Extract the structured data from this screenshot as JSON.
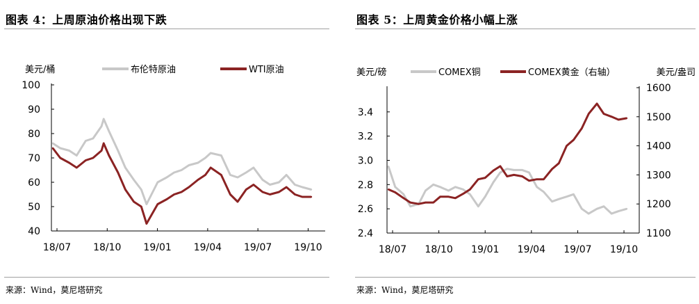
{
  "left": {
    "title": "图表 4：上周原油价格出现下跌",
    "source": "来源：Wind，莫尼塔研究",
    "chart_data": {
      "type": "line",
      "ylabel": "美元/桶",
      "ylim": [
        40,
        100
      ],
      "yticks": [
        "100",
        "90",
        "80",
        "70",
        "60",
        "50",
        "40"
      ],
      "xticks": [
        "18/07",
        "18/10",
        "19/01",
        "19/04",
        "19/07",
        "19/10"
      ],
      "x": [
        "2018-07-01",
        "2018-07-15",
        "2018-08-01",
        "2018-08-15",
        "2018-09-01",
        "2018-09-15",
        "2018-10-01",
        "2018-10-05",
        "2018-10-15",
        "2018-11-01",
        "2018-11-15",
        "2018-12-01",
        "2018-12-15",
        "2018-12-25",
        "2019-01-15",
        "2019-02-01",
        "2019-02-15",
        "2019-03-01",
        "2019-03-15",
        "2019-04-01",
        "2019-04-15",
        "2019-04-25",
        "2019-05-15",
        "2019-06-01",
        "2019-06-15",
        "2019-07-01",
        "2019-07-15",
        "2019-08-01",
        "2019-08-15",
        "2019-09-01",
        "2019-09-15",
        "2019-10-01",
        "2019-10-15",
        "2019-11-01"
      ],
      "series": [
        {
          "name": "布伦特原油",
          "color": "#c8c8c8",
          "values": [
            76,
            74,
            73,
            71,
            77,
            78,
            83,
            86,
            81,
            73,
            66,
            61,
            57,
            51,
            60,
            62,
            64,
            65,
            67,
            68,
            70,
            72,
            71,
            63,
            62,
            64,
            66,
            61,
            59,
            60,
            63,
            59,
            58,
            57
          ]
        },
        {
          "name": "WTI原油",
          "color": "#8b2323",
          "values": [
            74,
            70,
            68,
            66,
            69,
            70,
            73,
            76,
            71,
            64,
            57,
            52,
            50,
            43,
            51,
            53,
            55,
            56,
            58,
            61,
            63,
            66,
            63,
            55,
            52,
            57,
            59,
            56,
            55,
            56,
            58,
            55,
            54,
            54
          ]
        }
      ]
    }
  },
  "right": {
    "title": "图表 5：上周黄金价格小幅上涨",
    "source": "来源：Wind，莫尼塔研究",
    "chart_data": {
      "type": "line",
      "ylabel_left": "美元/磅",
      "ylabel_right": "美元/盎司",
      "ylim_left": [
        2.4,
        3.6
      ],
      "ylim_right": [
        1100,
        1600
      ],
      "yticks_left": [
        "3.4",
        "3.2",
        "3.0",
        "2.8",
        "2.6",
        "2.4"
      ],
      "yticks_right": [
        "1600",
        "1500",
        "1400",
        "1300",
        "1200",
        "1100"
      ],
      "xticks": [
        "18/07",
        "18/10",
        "19/01",
        "19/04",
        "19/07",
        "19/10"
      ],
      "x": [
        "2018-07-01",
        "2018-07-15",
        "2018-08-01",
        "2018-08-15",
        "2018-09-01",
        "2018-09-15",
        "2018-10-01",
        "2018-10-15",
        "2018-11-01",
        "2018-11-15",
        "2018-12-01",
        "2018-12-15",
        "2019-01-01",
        "2019-01-15",
        "2019-02-01",
        "2019-02-15",
        "2019-03-01",
        "2019-03-15",
        "2019-04-01",
        "2019-04-15",
        "2019-05-01",
        "2019-05-15",
        "2019-06-01",
        "2019-06-15",
        "2019-07-01",
        "2019-07-15",
        "2019-08-01",
        "2019-08-15",
        "2019-09-01",
        "2019-09-15",
        "2019-10-01",
        "2019-10-15",
        "2019-11-01"
      ],
      "series": [
        {
          "name": "COMEX铜",
          "axis": "left",
          "color": "#c8c8c8",
          "values": [
            2.95,
            2.78,
            2.72,
            2.62,
            2.64,
            2.75,
            2.8,
            2.78,
            2.75,
            2.78,
            2.76,
            2.72,
            2.62,
            2.7,
            2.82,
            2.9,
            2.93,
            2.92,
            2.92,
            2.9,
            2.78,
            2.74,
            2.66,
            2.68,
            2.7,
            2.72,
            2.6,
            2.56,
            2.6,
            2.62,
            2.56,
            2.58,
            2.6
          ]
        },
        {
          "name": "COMEX黄金（右轴）",
          "axis": "right",
          "color": "#8b2323",
          "values": [
            1250,
            1240,
            1220,
            1205,
            1200,
            1205,
            1205,
            1225,
            1225,
            1220,
            1235,
            1250,
            1285,
            1290,
            1315,
            1330,
            1295,
            1300,
            1295,
            1280,
            1285,
            1285,
            1320,
            1340,
            1400,
            1420,
            1460,
            1510,
            1545,
            1510,
            1500,
            1490,
            1495
          ]
        }
      ]
    }
  }
}
